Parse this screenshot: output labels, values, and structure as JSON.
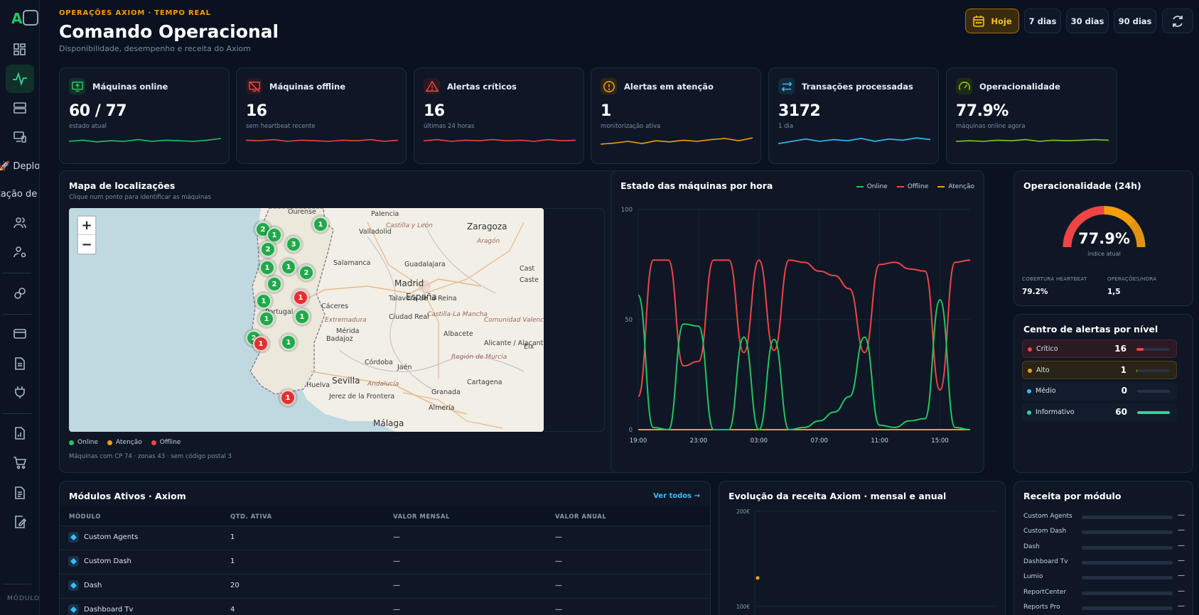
{
  "sidebar": {
    "logo": "A",
    "deploy_label": "Deploy",
    "cut_label": "zação de",
    "section_label": "MÓDULO"
  },
  "header": {
    "eyebrow": "OPERAÇÕES AXIOM · TEMPO REAL",
    "title": "Comando Operacional",
    "subtitle": "Disponibilidade, desempenho e receita do Axiom",
    "ranges": [
      "Hoje",
      "7 dias",
      "30 dias",
      "90 dias"
    ],
    "active_range": "Hoje"
  },
  "kpis": [
    {
      "label": "Máquinas online",
      "value": "60 / 77",
      "sub": "estado atual",
      "icon": "monitor-up-icon",
      "color": "#22c55e",
      "spark": [
        50,
        52,
        49,
        51,
        50,
        53,
        50,
        52,
        51,
        50,
        52,
        55
      ]
    },
    {
      "label": "Máquinas offline",
      "value": "16",
      "sub": "sem heartbeat recente",
      "icon": "monitor-off-icon",
      "color": "#ef4444",
      "spark": [
        52,
        51,
        53,
        50,
        52,
        51,
        50,
        52,
        51,
        53,
        50,
        52
      ]
    },
    {
      "label": "Alertas críticos",
      "value": "16",
      "sub": "últimas 24 horas",
      "icon": "alert-triangle-icon",
      "color": "#ef4444",
      "spark": [
        51,
        53,
        50,
        52,
        51,
        53,
        51,
        52,
        50,
        53,
        51,
        52
      ]
    },
    {
      "label": "Alertas em atenção",
      "value": "1",
      "sub": "monitorização ativa",
      "icon": "alert-circle-icon",
      "color": "#f59e0b",
      "spark": [
        45,
        47,
        50,
        46,
        51,
        49,
        52,
        50,
        53,
        55,
        51,
        56
      ]
    },
    {
      "label": "Transações processadas",
      "value": "3172",
      "sub": "1 dia",
      "icon": "arrows-exchange-icon",
      "color": "#38bdf8",
      "spark": [
        46,
        50,
        54,
        50,
        53,
        51,
        55,
        50,
        54,
        52,
        56,
        53
      ]
    },
    {
      "label": "Operacionalidade",
      "value": "77.9%",
      "sub": "máquinas online agora",
      "icon": "gauge-icon",
      "color": "#84cc16",
      "spark": [
        50,
        51,
        50,
        52,
        51,
        53,
        50,
        52,
        51,
        52,
        53,
        52
      ]
    }
  ],
  "map_card": {
    "title": "Mapa de localizações",
    "subtitle": "Clique num ponto para identificar as máquinas",
    "zoom_in": "+",
    "zoom_out": "−",
    "legend": [
      {
        "label": "Online",
        "color": "#22c55e"
      },
      {
        "label": "Atenção",
        "color": "#f59e0b"
      },
      {
        "label": "Offline",
        "color": "#ef4444"
      }
    ],
    "footer": "Máquinas com CP 74 · zonas 43 · sem código postal 3",
    "pins": [
      {
        "n": "2",
        "s": "g"
      },
      {
        "n": "1",
        "s": "g"
      },
      {
        "n": "1",
        "s": "g"
      },
      {
        "n": "2",
        "s": "g"
      },
      {
        "n": "3",
        "s": "g"
      },
      {
        "n": "1",
        "s": "g"
      },
      {
        "n": "1",
        "s": "g"
      },
      {
        "n": "2",
        "s": "g"
      },
      {
        "n": "2",
        "s": "g"
      },
      {
        "n": "1",
        "s": "g"
      },
      {
        "n": "1",
        "s": "r"
      },
      {
        "n": "1",
        "s": "g"
      },
      {
        "n": "1",
        "s": "g"
      },
      {
        "n": "2",
        "s": "g"
      },
      {
        "n": "1",
        "s": "r"
      },
      {
        "n": "1",
        "s": "g"
      },
      {
        "n": "1",
        "s": "r"
      }
    ],
    "places": [
      "Ourense",
      "Palencia",
      "Zaragoza",
      "Valladolid",
      "Castilla y León",
      "Aragón",
      "Salamanca",
      "Guadalajara",
      "Madrid",
      "España",
      "Talavera de la Reina",
      "Cáceres",
      "Castilla-La Mancha",
      "Extremadura",
      "Ciudad Real",
      "Portugal",
      "Comunidad Valenciana",
      "Badajoz",
      "Mérida",
      "Albacete",
      "Alicante / Alacant",
      "Región de Murcia",
      "Córdoba",
      "Jaén",
      "Sevilla",
      "Andalucía",
      "Huelva",
      "Granada",
      "Cartagena",
      "Jerez de la Frontera",
      "Málaga",
      "Almería",
      "Cast",
      "Caste",
      "Elx"
    ]
  },
  "status_chart": {
    "title": "Estado das máquinas por hora",
    "legend": [
      {
        "name": "Online",
        "color": "#22c55e"
      },
      {
        "name": "Offline",
        "color": "#ef4444"
      },
      {
        "name": "Atenção",
        "color": "#f59e0b"
      }
    ]
  },
  "chart_data": [
    {
      "type": "line",
      "title": "Estado das máquinas por hora",
      "x": [
        "19:00",
        "20:00",
        "21:00",
        "22:00",
        "23:00",
        "00:00",
        "01:00",
        "02:00",
        "03:00",
        "04:00",
        "05:00",
        "06:00",
        "07:00",
        "08:00",
        "09:00",
        "10:00",
        "11:00",
        "12:00",
        "13:00",
        "14:00",
        "15:00",
        "16:00",
        "17:00"
      ],
      "x_ticks": [
        "19:00",
        "23:00",
        "03:00",
        "07:00",
        "11:00",
        "15:00"
      ],
      "yticks": [
        "0",
        "50",
        "100"
      ],
      "ylim": [
        0,
        100
      ],
      "series": [
        {
          "name": "Online",
          "color": "#22c55e",
          "values": [
            61,
            1,
            0,
            48,
            47,
            0,
            0,
            42,
            0,
            41,
            0,
            1,
            4,
            8,
            15,
            42,
            2,
            1,
            4,
            5,
            59,
            1,
            0
          ]
        },
        {
          "name": "Offline",
          "color": "#ef4444",
          "values": [
            15,
            77,
            77,
            29,
            31,
            77,
            77,
            35,
            77,
            36,
            77,
            76,
            72,
            70,
            64,
            35,
            75,
            76,
            73,
            72,
            18,
            76,
            77
          ]
        },
        {
          "name": "Atenção",
          "color": "#f59e0b",
          "values": [
            0,
            0,
            0,
            0,
            0,
            0,
            0,
            0,
            0,
            0,
            0,
            0,
            0,
            0,
            0,
            0,
            0,
            0,
            0,
            0,
            0,
            0,
            0
          ]
        }
      ]
    },
    {
      "type": "line",
      "title": "Evolução da receita Axiom · mensal e anual",
      "yticks": [
        "200€",
        "100€"
      ],
      "points": [
        {
          "x": 0,
          "y": 130
        }
      ]
    }
  ],
  "gauge": {
    "title": "Operacionalidade (24h)",
    "value": "77.9%",
    "fraction": 0.779,
    "caption": "índice atual",
    "stats": [
      {
        "label": "COBERTURA HEARTBEAT",
        "value": "79.2%"
      },
      {
        "label": "OPERAÇÕES/HORA",
        "value": "1,5"
      }
    ]
  },
  "alerts": {
    "title": "Centro de alertas por nível",
    "items": [
      {
        "label": "Crítico",
        "value": "16",
        "color": "#ef4444",
        "fraction": 0.21,
        "bg": "#2a1a24"
      },
      {
        "label": "Alto",
        "value": "1",
        "color": "#f59e0b",
        "fraction": 0.02,
        "bg": "#2a2418"
      },
      {
        "label": "Médio",
        "value": "0",
        "color": "#38bdf8",
        "fraction": 0.0,
        "bg": "#121c2c"
      },
      {
        "label": "Informativo",
        "value": "60",
        "color": "#34d399",
        "fraction": 1.0,
        "bg": "#121c2c"
      }
    ]
  },
  "modules": {
    "title": "Módulos Ativos · Axiom",
    "link": "Ver todos →",
    "columns": [
      "MÓDULO",
      "QTD. ATIVA",
      "VALOR MENSAL",
      "VALOR ANUAL"
    ],
    "rows": [
      {
        "name": "Custom Agents",
        "qty": "1",
        "monthly": "—",
        "annual": "—"
      },
      {
        "name": "Custom Dash",
        "qty": "1",
        "monthly": "—",
        "annual": "—"
      },
      {
        "name": "Dash",
        "qty": "20",
        "monthly": "—",
        "annual": "—"
      },
      {
        "name": "Dashboard Tv",
        "qty": "4",
        "monthly": "—",
        "annual": "—"
      }
    ]
  },
  "revenue_evolution": {
    "title": "Evolução da receita Axiom · mensal e anual"
  },
  "revenue_by_module": {
    "title": "Receita por módulo",
    "rows": [
      {
        "name": "Custom Agents",
        "value": "—"
      },
      {
        "name": "Custom Dash",
        "value": "—"
      },
      {
        "name": "Dash",
        "value": "—"
      },
      {
        "name": "Dashboard Tv",
        "value": "—"
      },
      {
        "name": "Lumio",
        "value": "—"
      },
      {
        "name": "ReportCenter",
        "value": "—"
      },
      {
        "name": "Reports Pro",
        "value": "—"
      }
    ]
  }
}
